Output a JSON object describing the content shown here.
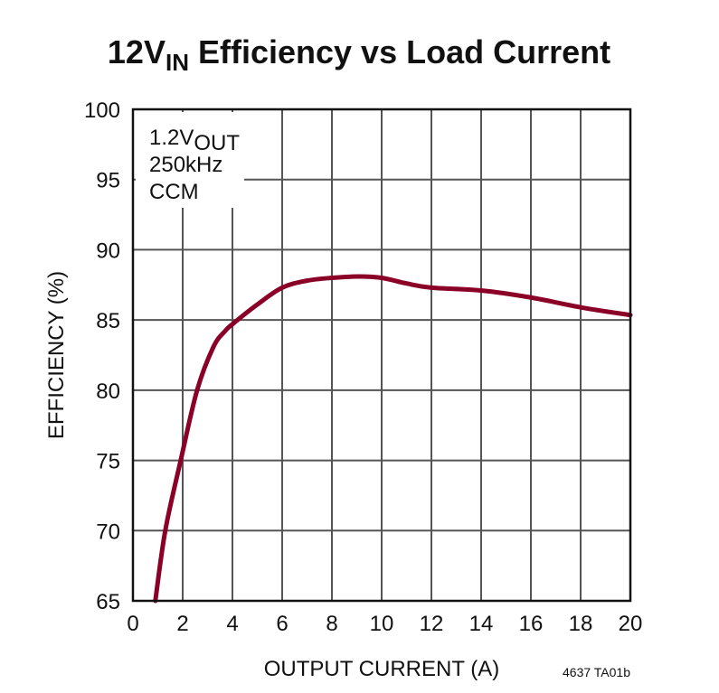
{
  "chart_data": {
    "type": "line",
    "title": {
      "main": "12V",
      "sub": "IN",
      "rest": " Efficiency vs Load Current"
    },
    "xlabel": "OUTPUT CURRENT (A)",
    "ylabel": "EFFICIENCY (%)",
    "xlim": [
      0,
      20
    ],
    "ylim": [
      65,
      100
    ],
    "xticks": [
      0,
      2,
      4,
      6,
      8,
      10,
      12,
      14,
      16,
      18,
      20
    ],
    "yticks": [
      65,
      70,
      75,
      80,
      85,
      90,
      95,
      100
    ],
    "grid": true,
    "annotation": {
      "line1_main": "1.2V",
      "line1_sub": "OUT",
      "line2": "250kHz",
      "line3": "CCM"
    },
    "footnote": "4637 TA01b",
    "series": [
      {
        "color": "#8b0026",
        "x": [
          0.9,
          1.3,
          1.92,
          2.58,
          3.24,
          3.7,
          4.0,
          5.0,
          6.0,
          7.0,
          8.0,
          9.1,
          10.0,
          11.0,
          12.0,
          14.0,
          16.0,
          18.0,
          20.0
        ],
        "y": [
          65,
          70,
          75,
          80,
          83.1,
          84.2,
          84.7,
          86.1,
          87.3,
          87.8,
          88.0,
          88.1,
          88.0,
          87.6,
          87.3,
          87.1,
          86.6,
          85.9,
          85.35
        ]
      }
    ]
  }
}
